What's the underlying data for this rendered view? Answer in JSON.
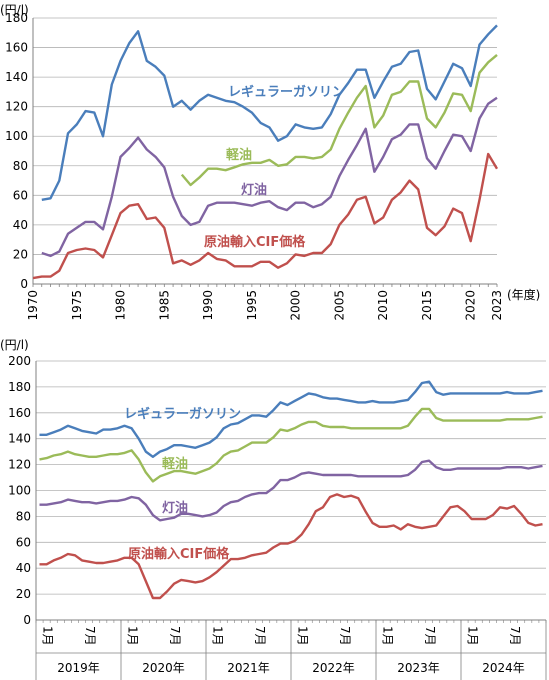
{
  "chart_data": [
    {
      "type": "line",
      "y_unit": "(円/l)",
      "x_unit": "(年度)",
      "ylim": [
        0,
        180
      ],
      "yticks": [
        0,
        20,
        40,
        60,
        80,
        100,
        120,
        140,
        160,
        180
      ],
      "xlim": [
        1970,
        2023
      ],
      "xticks": [
        "1970",
        "1975",
        "1980",
        "1985",
        "1990",
        "1995",
        "2000",
        "2005",
        "2010",
        "2015",
        "2020",
        "2023"
      ],
      "grid": true,
      "series": [
        {
          "name": "レギュラーガソリン",
          "color": "#4a7ebb",
          "x": [
            1971,
            1972,
            1973,
            1974,
            1975,
            1976,
            1977,
            1978,
            1979,
            1980,
            1981,
            1982,
            1983,
            1984,
            1985,
            1986,
            1987,
            1988,
            1989,
            1990,
            1991,
            1992,
            1993,
            1994,
            1995,
            1996,
            1997,
            1998,
            1999,
            2000,
            2001,
            2002,
            2003,
            2004,
            2005,
            2006,
            2007,
            2008,
            2009,
            2010,
            2011,
            2012,
            2013,
            2014,
            2015,
            2016,
            2017,
            2018,
            2019,
            2020,
            2021,
            2022,
            2023
          ],
          "y": [
            57,
            58,
            70,
            102,
            108,
            117,
            116,
            100,
            135,
            151,
            163,
            171,
            151,
            147,
            141,
            120,
            124,
            118,
            124,
            128,
            126,
            124,
            123,
            120,
            116,
            109,
            106,
            97,
            100,
            108,
            106,
            105,
            106,
            115,
            128,
            136,
            145,
            145,
            126,
            137,
            147,
            149,
            157,
            158,
            132,
            125,
            137,
            149,
            146,
            134,
            162,
            169,
            175
          ]
        },
        {
          "name": "軽油",
          "color": "#9bbb59",
          "x": [
            1987,
            1988,
            1989,
            1990,
            1991,
            1992,
            1993,
            1994,
            1995,
            1996,
            1997,
            1998,
            1999,
            2000,
            2001,
            2002,
            2003,
            2004,
            2005,
            2006,
            2007,
            2008,
            2009,
            2010,
            2011,
            2012,
            2013,
            2014,
            2015,
            2016,
            2017,
            2018,
            2019,
            2020,
            2021,
            2022,
            2023
          ],
          "y": [
            74,
            67,
            72,
            78,
            78,
            77,
            79,
            81,
            82,
            82,
            84,
            80,
            81,
            86,
            86,
            85,
            86,
            91,
            105,
            116,
            126,
            134,
            106,
            114,
            128,
            130,
            137,
            137,
            112,
            106,
            116,
            129,
            128,
            117,
            143,
            150,
            155
          ]
        },
        {
          "name": "灯油",
          "color": "#8064a2",
          "x": [
            1971,
            1972,
            1973,
            1974,
            1975,
            1976,
            1977,
            1978,
            1979,
            1980,
            1981,
            1982,
            1983,
            1984,
            1985,
            1986,
            1987,
            1988,
            1989,
            1990,
            1991,
            1992,
            1993,
            1994,
            1995,
            1996,
            1997,
            1998,
            1999,
            2000,
            2001,
            2002,
            2003,
            2004,
            2005,
            2006,
            2007,
            2008,
            2009,
            2010,
            2011,
            2012,
            2013,
            2014,
            2015,
            2016,
            2017,
            2018,
            2019,
            2020,
            2021,
            2022,
            2023
          ],
          "y": [
            21,
            19,
            22,
            34,
            38,
            42,
            42,
            37,
            59,
            86,
            92,
            99,
            91,
            86,
            79,
            59,
            46,
            40,
            42,
            53,
            55,
            55,
            55,
            54,
            53,
            55,
            56,
            52,
            50,
            55,
            55,
            52,
            54,
            59,
            73,
            84,
            94,
            105,
            76,
            86,
            98,
            101,
            108,
            108,
            85,
            78,
            90,
            101,
            100,
            90,
            112,
            122,
            126
          ]
        },
        {
          "name": "原油輸入CIF価格",
          "color": "#c0504d",
          "x": [
            1970,
            1971,
            1972,
            1973,
            1974,
            1975,
            1976,
            1977,
            1978,
            1979,
            1980,
            1981,
            1982,
            1983,
            1984,
            1985,
            1986,
            1987,
            1988,
            1989,
            1990,
            1991,
            1992,
            1993,
            1994,
            1995,
            1996,
            1997,
            1998,
            1999,
            2000,
            2001,
            2002,
            2003,
            2004,
            2005,
            2006,
            2007,
            2008,
            2009,
            2010,
            2011,
            2012,
            2013,
            2014,
            2015,
            2016,
            2017,
            2018,
            2019,
            2020,
            2021,
            2022,
            2023
          ],
          "y": [
            4,
            5,
            5,
            9,
            21,
            23,
            24,
            23,
            18,
            33,
            48,
            53,
            54,
            44,
            45,
            38,
            14,
            16,
            13,
            16,
            21,
            17,
            16,
            12,
            12,
            12,
            15,
            15,
            11,
            14,
            20,
            19,
            21,
            21,
            27,
            40,
            47,
            57,
            59,
            41,
            45,
            57,
            62,
            70,
            64,
            38,
            33,
            39,
            51,
            48,
            29,
            57,
            88,
            78
          ]
        }
      ]
    },
    {
      "type": "line",
      "y_unit": "(円/l)",
      "ylim": [
        0,
        200
      ],
      "yticks": [
        0,
        20,
        40,
        60,
        80,
        100,
        120,
        140,
        160,
        180,
        200
      ],
      "month_ticks": [
        "1月",
        "7月",
        "1月",
        "7月",
        "1月",
        "7月",
        "1月",
        "7月",
        "1月",
        "7月",
        "1月",
        "7月"
      ],
      "years": [
        "2019年",
        "2020年",
        "2021年",
        "2022年",
        "2023年",
        "2024年"
      ],
      "grid": true,
      "series": [
        {
          "name": "レギュラーガソリン",
          "color": "#4a7ebb",
          "values": [
            143,
            143,
            145,
            147,
            150,
            148,
            146,
            145,
            144,
            147,
            147,
            148,
            150,
            148,
            140,
            130,
            126,
            130,
            132,
            135,
            135,
            134,
            133,
            135,
            137,
            141,
            148,
            151,
            152,
            155,
            158,
            158,
            157,
            162,
            168,
            166,
            169,
            172,
            175,
            174,
            172,
            171,
            171,
            170,
            169,
            168,
            168,
            169,
            168,
            168,
            168,
            169,
            170,
            176,
            183,
            184,
            176,
            174,
            175,
            175,
            175,
            175,
            175,
            175,
            175,
            175,
            176,
            175,
            175,
            175,
            176,
            177
          ]
        },
        {
          "name": "軽油",
          "color": "#9bbb59",
          "values": [
            124,
            125,
            127,
            128,
            130,
            128,
            127,
            126,
            126,
            127,
            128,
            128,
            129,
            131,
            124,
            114,
            107,
            111,
            113,
            115,
            115,
            114,
            113,
            115,
            117,
            121,
            127,
            130,
            131,
            134,
            137,
            137,
            137,
            141,
            147,
            146,
            148,
            151,
            153,
            153,
            150,
            149,
            149,
            149,
            148,
            148,
            148,
            148,
            148,
            148,
            148,
            148,
            150,
            157,
            163,
            163,
            156,
            154,
            154,
            154,
            154,
            154,
            154,
            154,
            154,
            154,
            155,
            155,
            155,
            155,
            156,
            157
          ]
        },
        {
          "name": "灯油",
          "color": "#8064a2",
          "values": [
            89,
            89,
            90,
            91,
            93,
            92,
            91,
            91,
            90,
            91,
            92,
            92,
            93,
            95,
            94,
            89,
            81,
            77,
            78,
            79,
            82,
            82,
            81,
            80,
            81,
            83,
            88,
            91,
            92,
            95,
            97,
            98,
            98,
            102,
            108,
            108,
            110,
            113,
            114,
            113,
            112,
            112,
            112,
            112,
            112,
            111,
            111,
            111,
            111,
            111,
            111,
            111,
            112,
            116,
            122,
            123,
            118,
            116,
            116,
            117,
            117,
            117,
            117,
            117,
            117,
            117,
            118,
            118,
            118,
            117,
            118,
            119
          ]
        },
        {
          "name": "原油輸入CIF価格",
          "color": "#c0504d",
          "values": [
            43,
            43,
            46,
            48,
            51,
            50,
            46,
            45,
            44,
            44,
            45,
            46,
            48,
            48,
            43,
            30,
            17,
            17,
            22,
            28,
            31,
            30,
            29,
            30,
            33,
            37,
            42,
            47,
            47,
            48,
            50,
            51,
            52,
            56,
            59,
            59,
            61,
            66,
            74,
            84,
            87,
            95,
            97,
            95,
            96,
            94,
            84,
            75,
            72,
            72,
            73,
            70,
            74,
            72,
            71,
            72,
            73,
            80,
            87,
            88,
            84,
            78,
            78,
            78,
            81,
            87,
            86,
            88,
            82,
            75,
            73,
            74
          ]
        }
      ]
    }
  ]
}
